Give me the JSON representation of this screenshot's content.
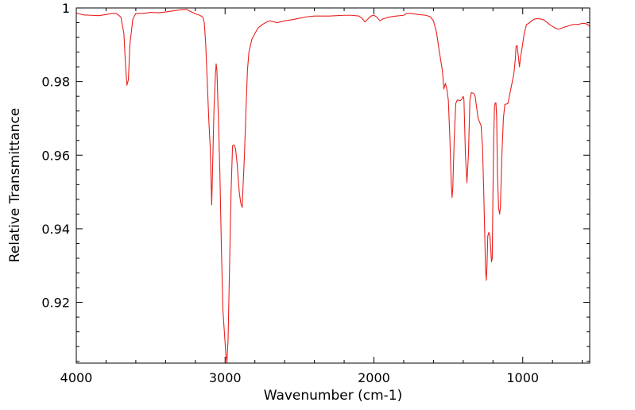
{
  "chart_data": {
    "type": "line",
    "title": "",
    "xlabel": "Wavenumber (cm-1)",
    "ylabel": "Relative Transmittance",
    "xlim": [
      4000,
      550
    ],
    "ylim": [
      0.9035,
      1.0
    ],
    "x_reversed": true,
    "x_ticks": [
      4000,
      3000,
      2000,
      1000
    ],
    "x_tick_labels": [
      "4000",
      "3000",
      "2000",
      "1000"
    ],
    "y_ticks": [
      0.92,
      0.94,
      0.96,
      0.98,
      1.0
    ],
    "y_tick_labels": [
      "0.92",
      "0.94",
      "0.96",
      "0.98",
      "1"
    ],
    "grid": false,
    "legend": "none",
    "series": [
      {
        "color": "#e8201e",
        "points": [
          [
            4000,
            0.9986
          ],
          [
            3950,
            0.9981
          ],
          [
            3900,
            0.998
          ],
          [
            3850,
            0.9979
          ],
          [
            3800,
            0.9982
          ],
          [
            3760,
            0.9985
          ],
          [
            3730,
            0.9985
          ],
          [
            3700,
            0.9975
          ],
          [
            3680,
            0.993
          ],
          [
            3670,
            0.985
          ],
          [
            3660,
            0.979
          ],
          [
            3650,
            0.9805
          ],
          [
            3640,
            0.99
          ],
          [
            3620,
            0.997
          ],
          [
            3600,
            0.9985
          ],
          [
            3550,
            0.9985
          ],
          [
            3500,
            0.9988
          ],
          [
            3450,
            0.9987
          ],
          [
            3400,
            0.9989
          ],
          [
            3350,
            0.9992
          ],
          [
            3300,
            0.9995
          ],
          [
            3260,
            0.9996
          ],
          [
            3230,
            0.999
          ],
          [
            3200,
            0.9984
          ],
          [
            3170,
            0.998
          ],
          [
            3150,
            0.9975
          ],
          [
            3140,
            0.996
          ],
          [
            3130,
            0.99
          ],
          [
            3120,
            0.98
          ],
          [
            3110,
            0.97
          ],
          [
            3100,
            0.962
          ],
          [
            3090,
            0.9465
          ],
          [
            3085,
            0.955
          ],
          [
            3075,
            0.972
          ],
          [
            3065,
            0.982
          ],
          [
            3060,
            0.9848
          ],
          [
            3055,
            0.983
          ],
          [
            3045,
            0.97
          ],
          [
            3035,
            0.955
          ],
          [
            3025,
            0.935
          ],
          [
            3015,
            0.918
          ],
          [
            3005,
            0.912
          ],
          [
            2995,
            0.906
          ],
          [
            2988,
            0.9035
          ],
          [
            2980,
            0.91
          ],
          [
            2970,
            0.93
          ],
          [
            2960,
            0.95
          ],
          [
            2950,
            0.9625
          ],
          [
            2940,
            0.9628
          ],
          [
            2930,
            0.9618
          ],
          [
            2920,
            0.958
          ],
          [
            2905,
            0.95
          ],
          [
            2895,
            0.947
          ],
          [
            2885,
            0.9458
          ],
          [
            2880,
            0.951
          ],
          [
            2870,
            0.96
          ],
          [
            2860,
            0.972
          ],
          [
            2850,
            0.983
          ],
          [
            2840,
            0.988
          ],
          [
            2820,
            0.9915
          ],
          [
            2800,
            0.993
          ],
          [
            2780,
            0.9945
          ],
          [
            2750,
            0.9955
          ],
          [
            2720,
            0.9962
          ],
          [
            2700,
            0.9965
          ],
          [
            2650,
            0.996
          ],
          [
            2600,
            0.9965
          ],
          [
            2550,
            0.9968
          ],
          [
            2500,
            0.9972
          ],
          [
            2450,
            0.9976
          ],
          [
            2400,
            0.9978
          ],
          [
            2350,
            0.9978
          ],
          [
            2300,
            0.9978
          ],
          [
            2250,
            0.9979
          ],
          [
            2200,
            0.998
          ],
          [
            2150,
            0.998
          ],
          [
            2100,
            0.9978
          ],
          [
            2080,
            0.9972
          ],
          [
            2060,
            0.9962
          ],
          [
            2040,
            0.997
          ],
          [
            2020,
            0.9978
          ],
          [
            2000,
            0.998
          ],
          [
            1980,
            0.9975
          ],
          [
            1960,
            0.9965
          ],
          [
            1940,
            0.997
          ],
          [
            1900,
            0.9975
          ],
          [
            1850,
            0.9978
          ],
          [
            1800,
            0.998
          ],
          [
            1780,
            0.9985
          ],
          [
            1750,
            0.9985
          ],
          [
            1700,
            0.9982
          ],
          [
            1650,
            0.998
          ],
          [
            1620,
            0.9976
          ],
          [
            1600,
            0.9965
          ],
          [
            1580,
            0.9935
          ],
          [
            1560,
            0.988
          ],
          [
            1540,
            0.983
          ],
          [
            1530,
            0.978
          ],
          [
            1520,
            0.9795
          ],
          [
            1510,
            0.978
          ],
          [
            1500,
            0.975
          ],
          [
            1490,
            0.965
          ],
          [
            1480,
            0.952
          ],
          [
            1475,
            0.9485
          ],
          [
            1470,
            0.951
          ],
          [
            1460,
            0.965
          ],
          [
            1450,
            0.974
          ],
          [
            1440,
            0.975
          ],
          [
            1420,
            0.9748
          ],
          [
            1410,
            0.9752
          ],
          [
            1400,
            0.976
          ],
          [
            1395,
            0.975
          ],
          [
            1385,
            0.96
          ],
          [
            1375,
            0.9525
          ],
          [
            1365,
            0.96
          ],
          [
            1355,
            0.975
          ],
          [
            1345,
            0.977
          ],
          [
            1330,
            0.9768
          ],
          [
            1320,
            0.976
          ],
          [
            1300,
            0.97
          ],
          [
            1290,
            0.969
          ],
          [
            1280,
            0.968
          ],
          [
            1270,
            0.962
          ],
          [
            1262,
            0.95
          ],
          [
            1255,
            0.938
          ],
          [
            1250,
            0.929
          ],
          [
            1245,
            0.926
          ],
          [
            1240,
            0.93
          ],
          [
            1235,
            0.938
          ],
          [
            1228,
            0.939
          ],
          [
            1224,
            0.9385
          ],
          [
            1220,
            0.9378
          ],
          [
            1215,
            0.9345
          ],
          [
            1210,
            0.931
          ],
          [
            1205,
            0.932
          ],
          [
            1200,
            0.95
          ],
          [
            1195,
            0.965
          ],
          [
            1190,
            0.973
          ],
          [
            1185,
            0.9742
          ],
          [
            1180,
            0.9742
          ],
          [
            1175,
            0.97
          ],
          [
            1170,
            0.955
          ],
          [
            1162,
            0.9455
          ],
          [
            1155,
            0.944
          ],
          [
            1150,
            0.946
          ],
          [
            1140,
            0.96
          ],
          [
            1130,
            0.97
          ],
          [
            1120,
            0.9738
          ],
          [
            1100,
            0.974
          ],
          [
            1080,
            0.978
          ],
          [
            1060,
            0.982
          ],
          [
            1050,
            0.986
          ],
          [
            1045,
            0.9895
          ],
          [
            1038,
            0.9898
          ],
          [
            1030,
            0.987
          ],
          [
            1022,
            0.984
          ],
          [
            1015,
            0.9865
          ],
          [
            1005,
            0.989
          ],
          [
            990,
            0.993
          ],
          [
            975,
            0.9955
          ],
          [
            960,
            0.9958
          ],
          [
            940,
            0.9965
          ],
          [
            920,
            0.997
          ],
          [
            900,
            0.9971
          ],
          [
            880,
            0.997
          ],
          [
            860,
            0.9968
          ],
          [
            840,
            0.9962
          ],
          [
            820,
            0.9955
          ],
          [
            800,
            0.995
          ],
          [
            780,
            0.9945
          ],
          [
            760,
            0.9942
          ],
          [
            740,
            0.9945
          ],
          [
            720,
            0.9948
          ],
          [
            700,
            0.995
          ],
          [
            680,
            0.9953
          ],
          [
            660,
            0.9955
          ],
          [
            640,
            0.9955
          ],
          [
            620,
            0.9956
          ],
          [
            600,
            0.9958
          ],
          [
            580,
            0.9958
          ],
          [
            565,
            0.9955
          ],
          [
            550,
            0.995
          ]
        ]
      }
    ]
  }
}
